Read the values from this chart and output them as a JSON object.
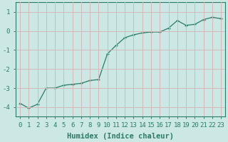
{
  "x": [
    0,
    1,
    2,
    3,
    4,
    5,
    6,
    7,
    8,
    9,
    10,
    11,
    12,
    13,
    14,
    15,
    16,
    17,
    18,
    19,
    20,
    21,
    22,
    23
  ],
  "y": [
    -3.8,
    -4.05,
    -3.85,
    -3.0,
    -3.0,
    -2.85,
    -2.8,
    -2.75,
    -2.6,
    -2.55,
    -1.2,
    -0.75,
    -0.35,
    -0.2,
    -0.1,
    -0.05,
    -0.05,
    0.15,
    0.55,
    0.3,
    0.35,
    0.6,
    0.72,
    0.65
  ],
  "xlabel": "Humidex (Indice chaleur)",
  "xlim": [
    -0.5,
    23.5
  ],
  "ylim": [
    -4.5,
    1.5
  ],
  "yticks": [
    -4,
    -3,
    -2,
    -1,
    0,
    1
  ],
  "xticks": [
    0,
    1,
    2,
    3,
    4,
    5,
    6,
    7,
    8,
    9,
    10,
    11,
    12,
    13,
    14,
    15,
    16,
    17,
    18,
    19,
    20,
    21,
    22,
    23
  ],
  "line_color": "#2a7a6a",
  "marker": "+",
  "bg_color": "#cce8e4",
  "grid_color": "#d4b8b8",
  "tick_color": "#2a7a6a",
  "label_color": "#2a7a6a",
  "font_family": "monospace",
  "xlabel_fontsize": 7.5,
  "tick_fontsize": 6.5
}
